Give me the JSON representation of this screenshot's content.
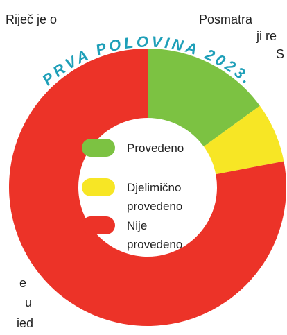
{
  "chart_data": {
    "type": "pie",
    "donut": true,
    "title": "PRVA POLOVINA 2023.",
    "categories": [
      "Provedeno",
      "Djelimično provedeno",
      "Nije provedeno"
    ],
    "values": [
      15,
      7,
      78
    ],
    "colors": [
      "#7cc242",
      "#f7e625",
      "#ec3328"
    ]
  },
  "page_text": [
    "Riječ je o",
    "Posmatra",
    "ji re",
    "S",
    "e",
    "u",
    "ied"
  ]
}
